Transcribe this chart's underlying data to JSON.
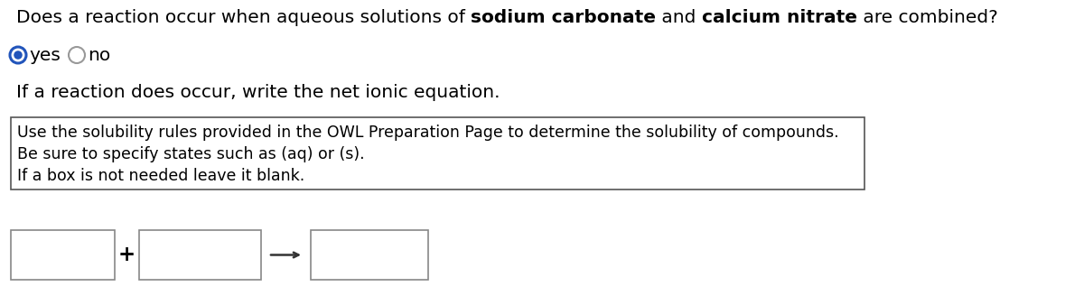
{
  "bg_color": "#ffffff",
  "line1_normal": "Does a reaction occur when aqueous solutions of ",
  "line1_bold1": "sodium carbonate",
  "line1_middle": " and ",
  "line1_bold2": "calcium nitrate",
  "line1_end": " are combined?",
  "yes_label": "yes",
  "no_label": "no",
  "line3": "If a reaction does occur, write the net ionic equation.",
  "hint_lines": [
    "Use the solubility rules provided in the OWL Preparation Page to determine the solubility of compounds.",
    "Be sure to specify states such as (aq) or (s).",
    "If a box is not needed leave it blank."
  ],
  "font_size_main": 14.5,
  "font_size_hint": 12.5,
  "text_color": "#000000",
  "box_edge_color": "#888888",
  "hint_box_edge_color": "#555555",
  "radio_selected_color": "#2255bb",
  "radio_unselected_color": "#999999"
}
